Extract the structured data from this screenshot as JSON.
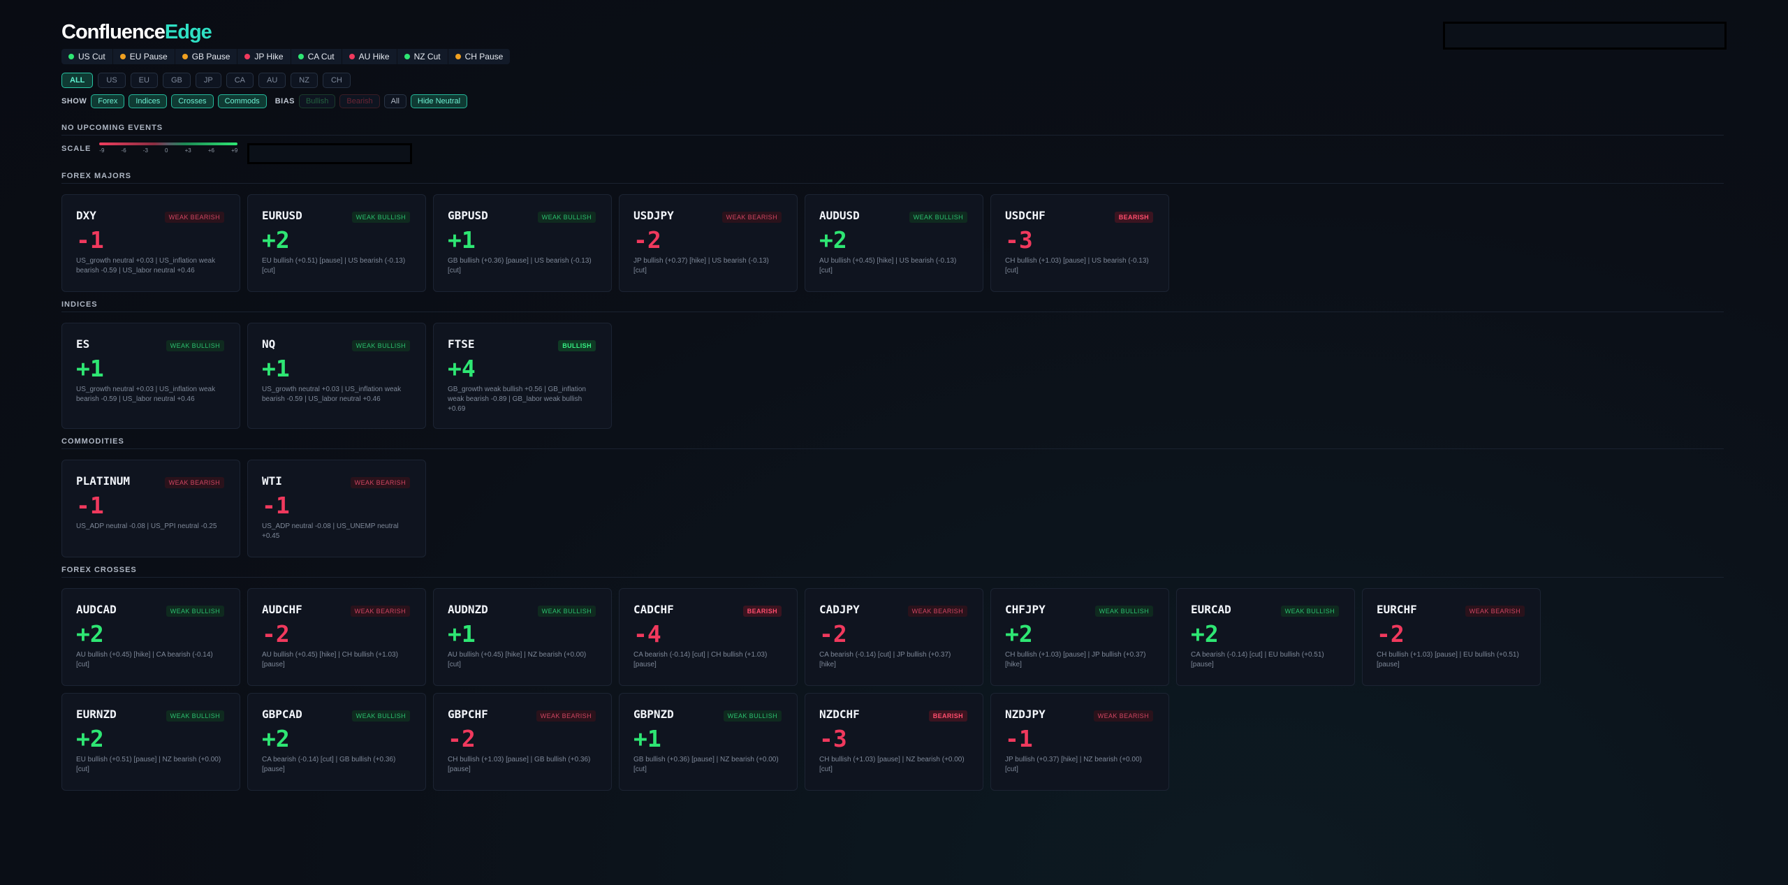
{
  "header": {
    "logo_primary": "Confluence",
    "logo_accent": "Edge"
  },
  "colors": {
    "bullish": "#2ee673",
    "bearish": "#f0395d",
    "accent": "#2fe0c4",
    "neutral": "#f0a020"
  },
  "rates": [
    {
      "label": "US Cut",
      "state": "cut"
    },
    {
      "label": "EU Pause",
      "state": "pause"
    },
    {
      "label": "GB Pause",
      "state": "pause"
    },
    {
      "label": "JP Hike",
      "state": "hike"
    },
    {
      "label": "CA Cut",
      "state": "cut"
    },
    {
      "label": "AU Hike",
      "state": "hike"
    },
    {
      "label": "NZ Cut",
      "state": "cut"
    },
    {
      "label": "CH Pause",
      "state": "pause"
    }
  ],
  "countries": [
    {
      "label": "ALL",
      "active": true
    },
    {
      "label": "US",
      "active": false
    },
    {
      "label": "EU",
      "active": false
    },
    {
      "label": "GB",
      "active": false
    },
    {
      "label": "JP",
      "active": false
    },
    {
      "label": "CA",
      "active": false
    },
    {
      "label": "AU",
      "active": false
    },
    {
      "label": "NZ",
      "active": false
    },
    {
      "label": "CH",
      "active": false
    }
  ],
  "filters": {
    "show_label": "SHOW",
    "show": [
      {
        "label": "Forex",
        "on": true
      },
      {
        "label": "Indices",
        "on": true
      },
      {
        "label": "Crosses",
        "on": true
      },
      {
        "label": "Commods",
        "on": true
      }
    ],
    "bias_label": "BIAS",
    "bias": [
      {
        "label": "Bullish",
        "style": "bull-off"
      },
      {
        "label": "Bearish",
        "style": "bear-off"
      },
      {
        "label": "All",
        "style": "all"
      },
      {
        "label": "Hide Neutral",
        "style": "on"
      }
    ]
  },
  "events": {
    "title": "NO UPCOMING EVENTS"
  },
  "scale": {
    "label": "SCALE",
    "ticks": [
      "-9",
      "-6",
      "-3",
      "0",
      "+3",
      "+6",
      "+9"
    ]
  },
  "sections": [
    {
      "title": "FOREX MAJORS",
      "cards": [
        {
          "symbol": "DXY",
          "bias": "WEAK BEARISH",
          "badge": "wbear",
          "score": "-1",
          "desc": "US_growth neutral +0.03 | US_inflation weak bearish -0.59 | US_labor neutral +0.46"
        },
        {
          "symbol": "EURUSD",
          "bias": "WEAK BULLISH",
          "badge": "wbull",
          "score": "+2",
          "desc": "EU bullish (+0.51) [pause] | US bearish (-0.13) [cut]"
        },
        {
          "symbol": "GBPUSD",
          "bias": "WEAK BULLISH",
          "badge": "wbull",
          "score": "+1",
          "desc": "GB bullish (+0.36) [pause] | US bearish (-0.13) [cut]"
        },
        {
          "symbol": "USDJPY",
          "bias": "WEAK BEARISH",
          "badge": "wbear",
          "score": "-2",
          "desc": "JP bullish (+0.37) [hike] | US bearish (-0.13) [cut]"
        },
        {
          "symbol": "AUDUSD",
          "bias": "WEAK BULLISH",
          "badge": "wbull",
          "score": "+2",
          "desc": "AU bullish (+0.45) [hike] | US bearish (-0.13) [cut]"
        },
        {
          "symbol": "USDCHF",
          "bias": "BEARISH",
          "badge": "bear",
          "score": "-3",
          "desc": "CH bullish (+1.03) [pause] | US bearish (-0.13) [cut]"
        }
      ]
    },
    {
      "title": "INDICES",
      "tall": true,
      "cards": [
        {
          "symbol": "ES",
          "bias": "WEAK BULLISH",
          "badge": "wbull",
          "score": "+1",
          "desc": "US_growth neutral +0.03 | US_inflation weak bearish -0.59 | US_labor neutral +0.46"
        },
        {
          "symbol": "NQ",
          "bias": "WEAK BULLISH",
          "badge": "wbull",
          "score": "+1",
          "desc": "US_growth neutral +0.03 | US_inflation weak bearish -0.59 | US_labor neutral +0.46"
        },
        {
          "symbol": "FTSE",
          "bias": "BULLISH",
          "badge": "bull",
          "score": "+4",
          "desc": "GB_growth weak bullish +0.56 | GB_inflation weak bearish -0.89 | GB_labor weak bullish +0.69"
        }
      ]
    },
    {
      "title": "COMMODITIES",
      "cards": [
        {
          "symbol": "PLATINUM",
          "bias": "WEAK BEARISH",
          "badge": "wbear",
          "score": "-1",
          "desc": "US_ADP neutral -0.08 | US_PPI neutral -0.25"
        },
        {
          "symbol": "WTI",
          "bias": "WEAK BEARISH",
          "badge": "wbear",
          "score": "-1",
          "desc": "US_ADP neutral -0.08 | US_UNEMP neutral +0.45"
        }
      ]
    },
    {
      "title": "FOREX CROSSES",
      "cards": [
        {
          "symbol": "AUDCAD",
          "bias": "WEAK BULLISH",
          "badge": "wbull",
          "score": "+2",
          "desc": "AU bullish (+0.45) [hike] | CA bearish (-0.14) [cut]"
        },
        {
          "symbol": "AUDCHF",
          "bias": "WEAK BEARISH",
          "badge": "wbear",
          "score": "-2",
          "desc": "AU bullish (+0.45) [hike] | CH bullish (+1.03) [pause]"
        },
        {
          "symbol": "AUDNZD",
          "bias": "WEAK BULLISH",
          "badge": "wbull",
          "score": "+1",
          "desc": "AU bullish (+0.45) [hike] | NZ bearish (+0.00) [cut]"
        },
        {
          "symbol": "CADCHF",
          "bias": "BEARISH",
          "badge": "bear",
          "score": "-4",
          "desc": "CA bearish (-0.14) [cut] | CH bullish (+1.03) [pause]"
        },
        {
          "symbol": "CADJPY",
          "bias": "WEAK BEARISH",
          "badge": "wbear",
          "score": "-2",
          "desc": "CA bearish (-0.14) [cut] | JP bullish (+0.37) [hike]"
        },
        {
          "symbol": "CHFJPY",
          "bias": "WEAK BULLISH",
          "badge": "wbull",
          "score": "+2",
          "desc": "CH bullish (+1.03) [pause] | JP bullish (+0.37) [hike]"
        },
        {
          "symbol": "EURCAD",
          "bias": "WEAK BULLISH",
          "badge": "wbull",
          "score": "+2",
          "desc": "CA bearish (-0.14) [cut] | EU bullish (+0.51) [pause]"
        },
        {
          "symbol": "EURCHF",
          "bias": "WEAK BEARISH",
          "badge": "wbear",
          "score": "-2",
          "desc": "CH bullish (+1.03) [pause] | EU bullish (+0.51) [pause]"
        },
        {
          "symbol": "EURNZD",
          "bias": "WEAK BULLISH",
          "badge": "wbull",
          "score": "+2",
          "desc": "EU bullish (+0.51) [pause] | NZ bearish (+0.00) [cut]"
        },
        {
          "symbol": "GBPCAD",
          "bias": "WEAK BULLISH",
          "badge": "wbull",
          "score": "+2",
          "desc": "CA bearish (-0.14) [cut] | GB bullish (+0.36) [pause]"
        },
        {
          "symbol": "GBPCHF",
          "bias": "WEAK BEARISH",
          "badge": "wbear",
          "score": "-2",
          "desc": "CH bullish (+1.03) [pause] | GB bullish (+0.36) [pause]"
        },
        {
          "symbol": "GBPNZD",
          "bias": "WEAK BULLISH",
          "badge": "wbull",
          "score": "+1",
          "desc": "GB bullish (+0.36) [pause] | NZ bearish (+0.00) [cut]"
        },
        {
          "symbol": "NZDCHF",
          "bias": "BEARISH",
          "badge": "bear",
          "score": "-3",
          "desc": "CH bullish (+1.03) [pause] | NZ bearish (+0.00) [cut]"
        },
        {
          "symbol": "NZDJPY",
          "bias": "WEAK BEARISH",
          "badge": "wbear",
          "score": "-1",
          "desc": "JP bullish (+0.37) [hike] | NZ bearish (+0.00) [cut]"
        }
      ]
    }
  ]
}
